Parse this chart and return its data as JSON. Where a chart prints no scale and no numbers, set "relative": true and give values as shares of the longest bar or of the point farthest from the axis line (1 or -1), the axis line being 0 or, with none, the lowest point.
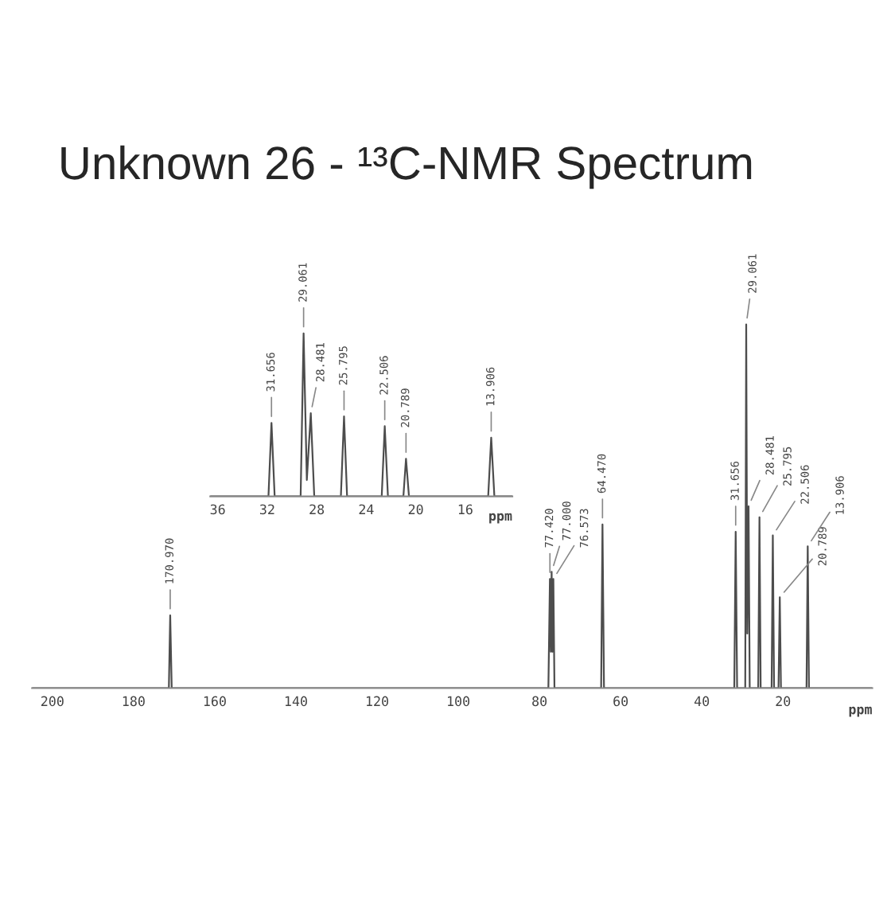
{
  "chart_data": [
    {
      "type": "line",
      "title": "Unknown 26 - ¹³C-NMR Spectrum",
      "xlabel": "ppm",
      "relative": true,
      "grid": false,
      "legend": false,
      "xlim": [
        205,
        -2
      ],
      "xticks": [
        200,
        180,
        160,
        140,
        120,
        100,
        80,
        60,
        40,
        20
      ],
      "x": [
        205,
        171.3,
        170.97,
        170.6,
        77.8,
        77.42,
        77.2,
        77.0,
        76.8,
        76.573,
        76.3,
        64.8,
        64.47,
        64.1,
        32.0,
        31.656,
        31.3,
        29.3,
        29.061,
        28.8,
        28.481,
        28.2,
        26.1,
        25.795,
        25.5,
        22.8,
        22.506,
        22.2,
        21.1,
        20.789,
        20.5,
        14.2,
        13.906,
        13.6,
        -2
      ],
      "series": [
        {
          "color": "#4d4d4d",
          "values": [
            0,
            0,
            0.2,
            0,
            0,
            0.3,
            0.1,
            0.32,
            0.1,
            0.3,
            0,
            0,
            0.45,
            0,
            0,
            0.43,
            0,
            0,
            1,
            0.15,
            0.5,
            0,
            0,
            0.47,
            0,
            0,
            0.42,
            0,
            0,
            0.25,
            0,
            0,
            0.39,
            0,
            0
          ]
        }
      ],
      "annotations": [
        {
          "text": "170.970",
          "x": 170.97,
          "y": 0.2
        },
        {
          "text": "77.420",
          "x": 77.42,
          "y": 0.3
        },
        {
          "text": "77.000",
          "x": 77.0,
          "y": 0.32
        },
        {
          "text": "76.573",
          "x": 76.573,
          "y": 0.3
        },
        {
          "text": "64.470",
          "x": 64.47,
          "y": 0.45
        },
        {
          "text": "31.656",
          "x": 31.656,
          "y": 0.43
        },
        {
          "text": "29.061",
          "x": 29.061,
          "y": 1
        },
        {
          "text": "28.481",
          "x": 28.481,
          "y": 0.5
        },
        {
          "text": "25.795",
          "x": 25.795,
          "y": 0.47
        },
        {
          "text": "22.506",
          "x": 22.506,
          "y": 0.42
        },
        {
          "text": "20.789",
          "x": 20.789,
          "y": 0.25
        },
        {
          "text": "13.906",
          "x": 13.906,
          "y": 0.39
        }
      ]
    },
    {
      "type": "line",
      "xlabel": "ppm",
      "relative": true,
      "grid": false,
      "legend": false,
      "xlim": [
        36.6,
        12.2
      ],
      "xticks": [
        36,
        32,
        28,
        24,
        20,
        16
      ],
      "x": [
        36.6,
        31.9,
        31.656,
        31.4,
        29.3,
        29.061,
        28.8,
        28.481,
        28.2,
        26.05,
        25.795,
        25.55,
        22.75,
        22.506,
        22.25,
        21.0,
        20.789,
        20.55,
        14.15,
        13.906,
        13.65,
        12.2
      ],
      "series": [
        {
          "color": "#4d4d4d",
          "values": [
            0,
            0,
            0.45,
            0,
            0,
            1,
            0.1,
            0.51,
            0,
            0,
            0.49,
            0,
            0,
            0.43,
            0,
            0,
            0.23,
            0,
            0,
            0.36,
            0,
            0
          ]
        }
      ],
      "annotations": [
        {
          "text": "31.656",
          "x": 31.656,
          "y": 0.45
        },
        {
          "text": "29.061",
          "x": 29.061,
          "y": 1
        },
        {
          "text": "28.481",
          "x": 28.481,
          "y": 0.51
        },
        {
          "text": "25.795",
          "x": 25.795,
          "y": 0.49
        },
        {
          "text": "22.506",
          "x": 22.506,
          "y": 0.43
        },
        {
          "text": "20.789",
          "x": 20.789,
          "y": 0.23
        },
        {
          "text": "13.906",
          "x": 13.906,
          "y": 0.36
        }
      ]
    }
  ]
}
